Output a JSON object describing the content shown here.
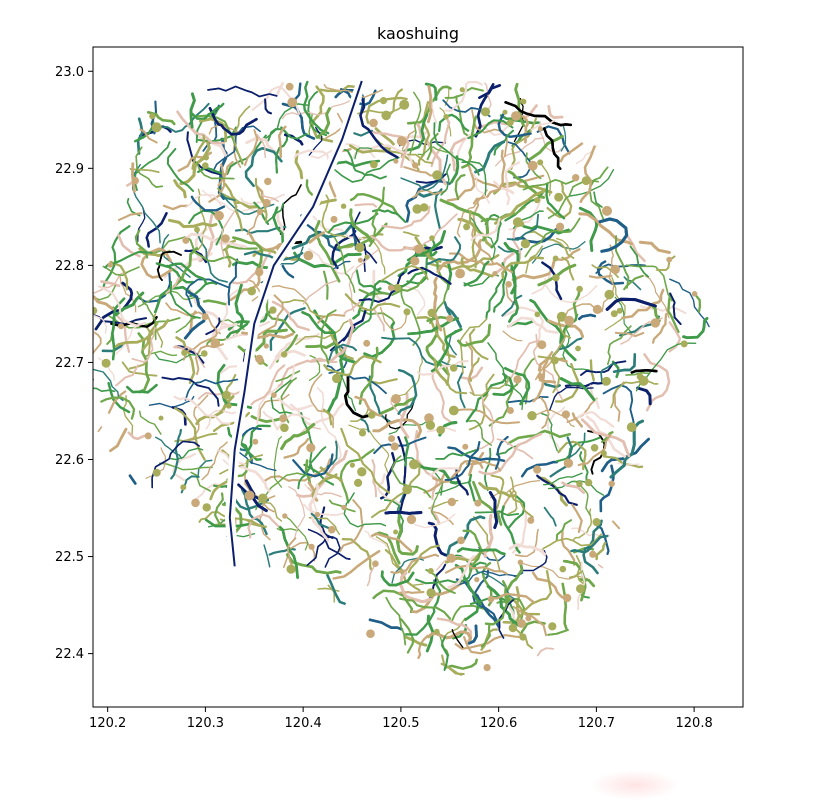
{
  "chart_data": {
    "type": "scatter",
    "title": "kaoshuing",
    "xlabel": "",
    "ylabel": "",
    "xlim": [
      120.185,
      120.85
    ],
    "ylim": [
      22.345,
      23.025
    ],
    "x_ticks": [
      "120.2",
      "120.3",
      "120.4",
      "120.5",
      "120.6",
      "120.7",
      "120.8"
    ],
    "x_tick_values": [
      120.2,
      120.3,
      120.4,
      120.5,
      120.6,
      120.7,
      120.8
    ],
    "y_ticks": [
      "22.4",
      "22.5",
      "22.6",
      "22.7",
      "22.8",
      "22.9",
      "23.0"
    ],
    "y_tick_values": [
      22.4,
      22.5,
      22.6,
      22.7,
      22.8,
      22.9,
      23.0
    ],
    "grid": false,
    "palette": [
      "#0b1f6b",
      "#1f5e86",
      "#2c7d7a",
      "#3f9a4a",
      "#6ea84a",
      "#a7ad5a",
      "#c9a97a",
      "#e2bfb0",
      "#f1dcd6",
      "#000000"
    ],
    "region_outline": [
      [
        120.235,
        22.975
      ],
      [
        120.33,
        22.985
      ],
      [
        120.42,
        22.99
      ],
      [
        120.52,
        22.99
      ],
      [
        120.62,
        22.99
      ],
      [
        120.7,
        22.93
      ],
      [
        120.76,
        22.85
      ],
      [
        120.82,
        22.74
      ],
      [
        120.77,
        22.65
      ],
      [
        120.72,
        22.52
      ],
      [
        120.69,
        22.45
      ],
      [
        120.645,
        22.385
      ],
      [
        120.56,
        22.375
      ],
      [
        120.48,
        22.41
      ],
      [
        120.42,
        22.46
      ],
      [
        120.37,
        22.48
      ],
      [
        120.3,
        22.53
      ],
      [
        120.22,
        22.58
      ],
      [
        120.17,
        22.66
      ],
      [
        120.165,
        22.74
      ],
      [
        120.2,
        22.81
      ],
      [
        120.215,
        22.86
      ]
    ],
    "main_river": [
      [
        120.46,
        22.99
      ],
      [
        120.44,
        22.93
      ],
      [
        120.41,
        22.86
      ],
      [
        120.37,
        22.8
      ],
      [
        120.35,
        22.74
      ],
      [
        120.34,
        22.67
      ],
      [
        120.33,
        22.61
      ],
      [
        120.325,
        22.54
      ],
      [
        120.33,
        22.49
      ]
    ]
  }
}
